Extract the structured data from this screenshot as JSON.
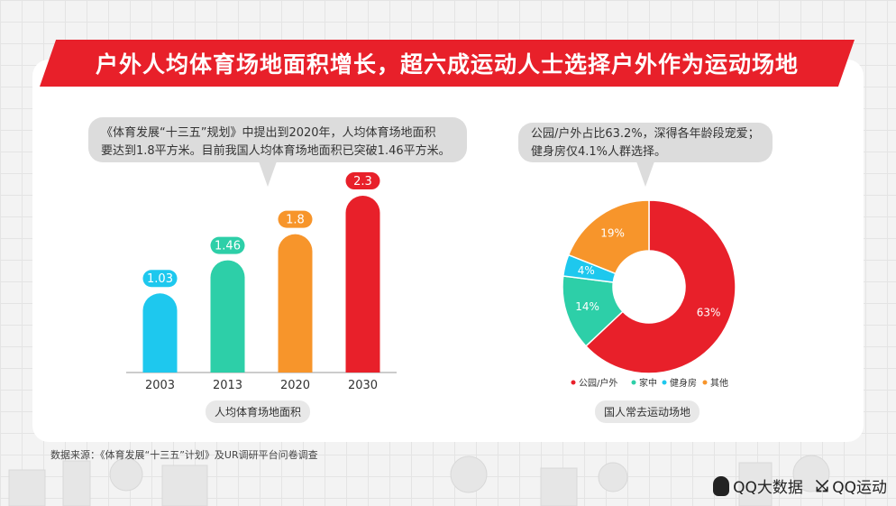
{
  "title": "户外人均体育场地面积增长，超六成运动人士选择户外作为运动场地",
  "bubble_left": {
    "line1": "《体育发展“十三五”规划》中提出到2020年，人均体育场地面积",
    "line2": "要达到1.8平方米。目前我国人均体育场地面积已突破1.46平方米。"
  },
  "bubble_right": {
    "line1": "公园/户外占比63.2%，深得各年龄段宠爱；",
    "line2": "健身房仅4.1%人群选择。"
  },
  "bar_chart_label": "人均体育场地面积",
  "pie_chart_label": "国人常去运动场地",
  "source": "数据来源：《体育发展“十三五”计划》及UR调研平台问卷调查",
  "footer": {
    "brand1": "QQ大数据",
    "brand2": "QQ运动"
  },
  "colors": {
    "red": "#e8202a",
    "teal": "#2dcfa8",
    "cyan": "#1ec8ee",
    "orange": "#f7952b"
  },
  "chart_data": [
    {
      "type": "bar",
      "categories": [
        "2003",
        "2013",
        "2020",
        "2030"
      ],
      "values": [
        1.03,
        1.46,
        1.8,
        2.3
      ],
      "value_labels": [
        "1.03",
        "1.46",
        "1.8",
        "2.3"
      ],
      "colors": [
        "#1ec8ee",
        "#2dcfa8",
        "#f7952b",
        "#e8202a"
      ],
      "xlabel": "人均体育场地面积",
      "ylim": [
        0,
        2.5
      ]
    },
    {
      "type": "pie",
      "donut": true,
      "categories": [
        "公园/户外",
        "家中",
        "健身房",
        "其他"
      ],
      "values": [
        63,
        14,
        4,
        19
      ],
      "value_labels": [
        "63%",
        "14%",
        "4%",
        "19%"
      ],
      "colors": [
        "#e8202a",
        "#2dcfa8",
        "#1ec8ee",
        "#f7952b"
      ],
      "legend": "bottom",
      "xlabel": "国人常去运动场地"
    }
  ]
}
